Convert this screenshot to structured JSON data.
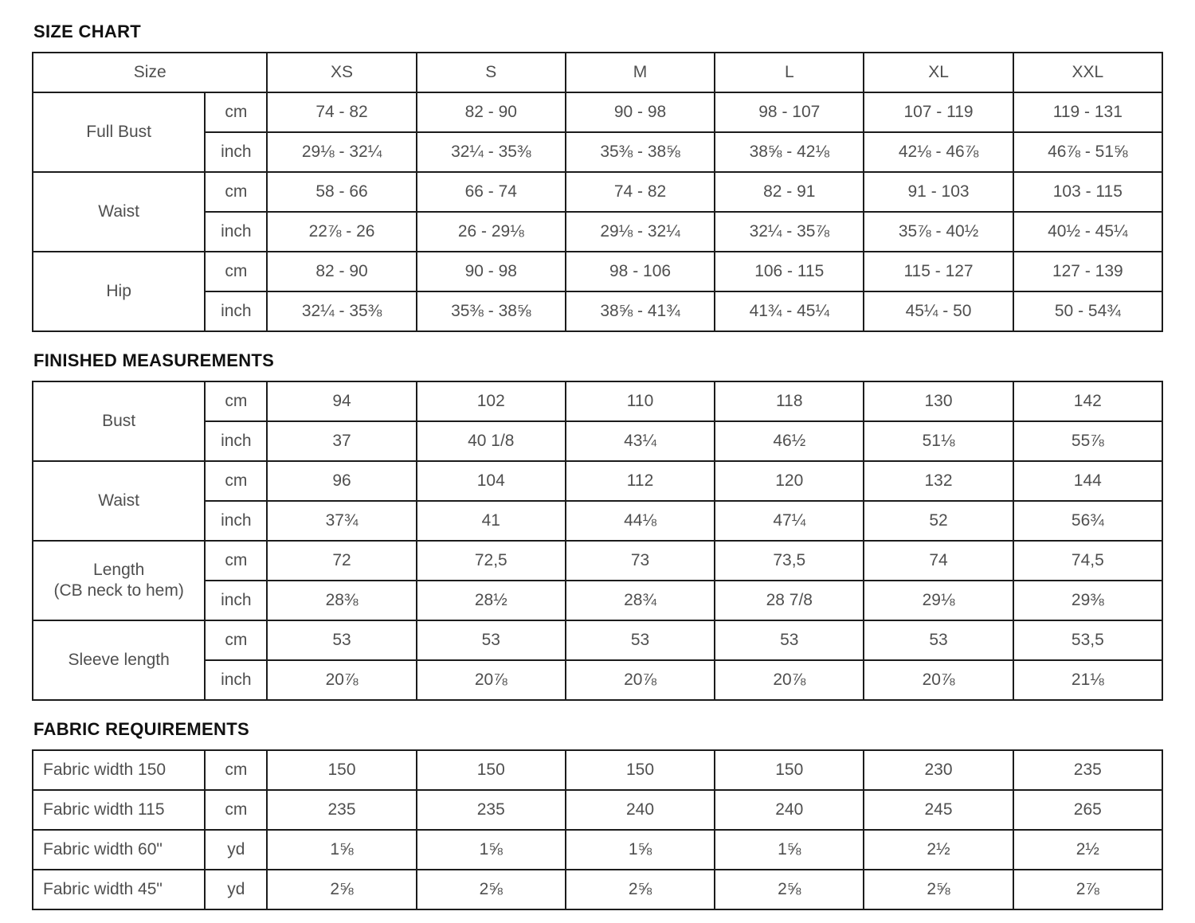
{
  "page": {
    "background_color": "#ffffff",
    "border_color": "#1c1c1c",
    "text_color": "#4f4f4f",
    "title_color": "#111111"
  },
  "sections": [
    {
      "id": "size-chart",
      "title": "SIZE CHART",
      "type": "grouped",
      "header": {
        "label": "Size",
        "sizes": [
          "XS",
          "S",
          "M",
          "L",
          "XL",
          "XXL"
        ]
      },
      "groups": [
        {
          "label": "Full Bust",
          "rows": [
            {
              "unit": "cm",
              "values": [
                "74 - 82",
                "82 - 90",
                "90 - 98",
                "98 - 107",
                "107 - 119",
                "119 - 131"
              ]
            },
            {
              "unit": "inch",
              "values": [
                "29⅛ - 32¼",
                "32¼ - 35⅜",
                "35⅜ - 38⅝",
                "38⅝ - 42⅛",
                "42⅛ - 46⅞",
                "46⅞ - 51⅝"
              ]
            }
          ]
        },
        {
          "label": "Waist",
          "rows": [
            {
              "unit": "cm",
              "values": [
                "58 - 66",
                "66 - 74",
                "74 - 82",
                "82 - 91",
                "91 - 103",
                "103 - 115"
              ]
            },
            {
              "unit": "inch",
              "values": [
                "22⅞ - 26",
                "26 - 29⅛",
                "29⅛ - 32¼",
                "32¼ - 35⅞",
                "35⅞ - 40½",
                "40½ - 45¼"
              ]
            }
          ]
        },
        {
          "label": "Hip",
          "rows": [
            {
              "unit": "cm",
              "values": [
                "82 - 90",
                "90 - 98",
                "98 - 106",
                "106 - 115",
                "115 - 127",
                "127 - 139"
              ]
            },
            {
              "unit": "inch",
              "values": [
                "32¼ - 35⅜",
                "35⅜ - 38⅝",
                "38⅝ - 41¾",
                "41¾ - 45¼",
                "45¼ - 50",
                "50 - 54¾"
              ]
            }
          ]
        }
      ]
    },
    {
      "id": "finished-measurements",
      "title": "FINISHED MEASUREMENTS",
      "type": "grouped",
      "header": null,
      "groups": [
        {
          "label": "Bust",
          "rows": [
            {
              "unit": "cm",
              "values": [
                "94",
                "102",
                "110",
                "118",
                "130",
                "142"
              ]
            },
            {
              "unit": "inch",
              "values": [
                "37",
                "40 1/8",
                "43¼",
                "46½",
                "51⅛",
                "55⅞"
              ]
            }
          ]
        },
        {
          "label": "Waist",
          "rows": [
            {
              "unit": "cm",
              "values": [
                "96",
                "104",
                "112",
                "120",
                "132",
                "144"
              ]
            },
            {
              "unit": "inch",
              "values": [
                "37¾",
                "41",
                "44⅛",
                "47¼",
                "52",
                "56¾"
              ]
            }
          ]
        },
        {
          "label": "Length\n(CB neck to hem)",
          "rows": [
            {
              "unit": "cm",
              "values": [
                "72",
                "72,5",
                "73",
                "73,5",
                "74",
                "74,5"
              ]
            },
            {
              "unit": "inch",
              "values": [
                "28⅜",
                "28½",
                "28¾",
                "28 7/8",
                "29⅛",
                "29⅜"
              ]
            }
          ]
        },
        {
          "label": "Sleeve length",
          "rows": [
            {
              "unit": "cm",
              "values": [
                "53",
                "53",
                "53",
                "53",
                "53",
                "53,5"
              ]
            },
            {
              "unit": "inch",
              "values": [
                "20⅞",
                "20⅞",
                "20⅞",
                "20⅞",
                "20⅞",
                "21⅛"
              ]
            }
          ]
        }
      ]
    },
    {
      "id": "fabric-requirements",
      "title": "FABRIC REQUIREMENTS",
      "type": "flat",
      "rows": [
        {
          "label": "Fabric width 150",
          "unit": "cm",
          "values": [
            "150",
            "150",
            "150",
            "150",
            "230",
            "235"
          ]
        },
        {
          "label": "Fabric width 115",
          "unit": "cm",
          "values": [
            "235",
            "235",
            "240",
            "240",
            "245",
            "265"
          ]
        },
        {
          "label": "Fabric width 60\"",
          "unit": "yd",
          "values": [
            "1⅝",
            "1⅝",
            "1⅝",
            "1⅝",
            "2½",
            "2½"
          ]
        },
        {
          "label": "Fabric width 45\"",
          "unit": "yd",
          "values": [
            "2⅝",
            "2⅝",
            "2⅝",
            "2⅝",
            "2⅝",
            "2⅞"
          ]
        }
      ]
    }
  ]
}
